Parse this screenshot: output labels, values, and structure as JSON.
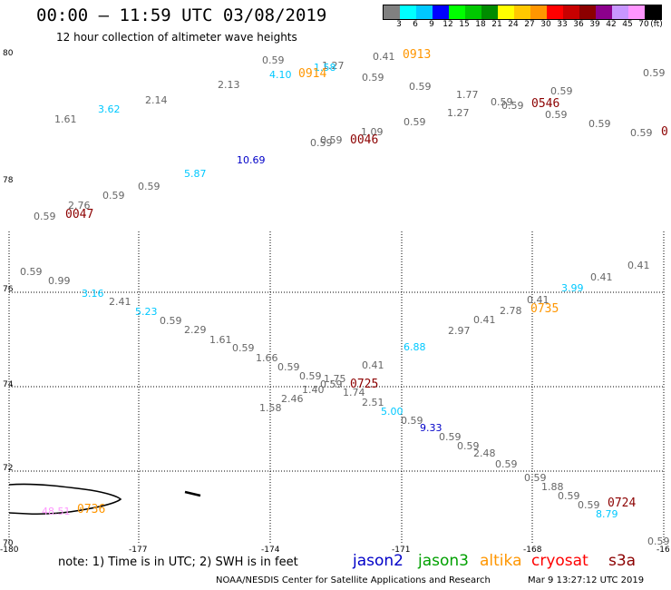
{
  "title": "00:00 – 11:59 UTC 03/08/2019",
  "subtitle": "12 hour collection of altimeter wave heights",
  "colorbar": {
    "unit": "(ft)",
    "labels": [
      "3",
      "6",
      "9",
      "12",
      "15",
      "18",
      "21",
      "24",
      "27",
      "30",
      "33",
      "36",
      "39",
      "42",
      "45",
      "70"
    ],
    "colors": [
      "#808080",
      "#00ffff",
      "#00c8ff",
      "#0000ff",
      "#00ff00",
      "#00c800",
      "#008c00",
      "#ffff00",
      "#ffc800",
      "#ff9600",
      "#ff0000",
      "#c80000",
      "#8c0000",
      "#8c008c",
      "#c896ff",
      "#ff96ff",
      "#000000"
    ]
  },
  "axes": {
    "lat_labels": [
      "80",
      "78",
      "76",
      "74",
      "72",
      "70"
    ],
    "lon_labels": [
      "-180",
      "-177",
      "-174",
      "-171",
      "-168",
      "-16"
    ]
  },
  "wave_heights": [
    {
      "v": "0.59",
      "c": "#666666"
    },
    {
      "v": "4.10",
      "c": "#00c8ff"
    },
    {
      "v": "1.27",
      "c": "#666666"
    },
    {
      "v": "1.58",
      "c": "#00c8ff"
    },
    {
      "v": "0.41",
      "c": "#666666"
    },
    {
      "v": "0.59",
      "c": "#666666"
    },
    {
      "v": "0.59",
      "c": "#666666"
    },
    {
      "v": "2.13",
      "c": "#666666"
    },
    {
      "v": "0.59",
      "c": "#666666"
    },
    {
      "v": "0.59",
      "c": "#666666"
    },
    {
      "v": "1.77",
      "c": "#666666"
    },
    {
      "v": "0.59",
      "c": "#666666"
    },
    {
      "v": "0.59",
      "c": "#666666"
    },
    {
      "v": "2.14",
      "c": "#666666"
    },
    {
      "v": "3.62",
      "c": "#00c8ff"
    },
    {
      "v": "1.27",
      "c": "#666666"
    },
    {
      "v": "0.59",
      "c": "#666666"
    },
    {
      "v": "1.61",
      "c": "#666666"
    },
    {
      "v": "0.59",
      "c": "#666666"
    },
    {
      "v": "0.59",
      "c": "#666666"
    },
    {
      "v": "0.59",
      "c": "#666666"
    },
    {
      "v": "1.09",
      "c": "#666666"
    },
    {
      "v": "0.59",
      "c": "#666666"
    },
    {
      "v": "0.59",
      "c": "#666666"
    },
    {
      "v": "10.69",
      "c": "#0000c8"
    },
    {
      "v": "5.87",
      "c": "#00c8ff"
    },
    {
      "v": "0.59",
      "c": "#666666"
    },
    {
      "v": "0.59",
      "c": "#666666"
    },
    {
      "v": "2.76",
      "c": "#666666"
    },
    {
      "v": "0.59",
      "c": "#666666"
    },
    {
      "v": "0.59",
      "c": "#666666"
    },
    {
      "v": "0.99",
      "c": "#666666"
    },
    {
      "v": "3.16",
      "c": "#00c8ff"
    },
    {
      "v": "2.41",
      "c": "#666666"
    },
    {
      "v": "5.23",
      "c": "#00c8ff"
    },
    {
      "v": "0.59",
      "c": "#666666"
    },
    {
      "v": "2.29",
      "c": "#666666"
    },
    {
      "v": "1.61",
      "c": "#666666"
    },
    {
      "v": "0.59",
      "c": "#666666"
    },
    {
      "v": "1.66",
      "c": "#666666"
    },
    {
      "v": "0.59",
      "c": "#666666"
    },
    {
      "v": "0.59",
      "c": "#666666"
    },
    {
      "v": "1.75",
      "c": "#666666"
    },
    {
      "v": "1.40",
      "c": "#666666"
    },
    {
      "v": "0.59",
      "c": "#666666"
    },
    {
      "v": "1.74",
      "c": "#666666"
    },
    {
      "v": "2.46",
      "c": "#666666"
    },
    {
      "v": "1.58",
      "c": "#666666"
    },
    {
      "v": "2.51",
      "c": "#666666"
    },
    {
      "v": "0.41",
      "c": "#666666"
    },
    {
      "v": "5.00",
      "c": "#00c8ff"
    },
    {
      "v": "0.59",
      "c": "#666666"
    },
    {
      "v": "9.33",
      "c": "#0000c8"
    },
    {
      "v": "0.59",
      "c": "#666666"
    },
    {
      "v": "0.59",
      "c": "#666666"
    },
    {
      "v": "2.48",
      "c": "#666666"
    },
    {
      "v": "0.59",
      "c": "#666666"
    },
    {
      "v": "6.88",
      "c": "#00c8ff"
    },
    {
      "v": "2.97",
      "c": "#666666"
    },
    {
      "v": "0.41",
      "c": "#666666"
    },
    {
      "v": "2.78",
      "c": "#666666"
    },
    {
      "v": "0.41",
      "c": "#666666"
    },
    {
      "v": "3.99",
      "c": "#00c8ff"
    },
    {
      "v": "0.41",
      "c": "#666666"
    },
    {
      "v": "0.41",
      "c": "#666666"
    },
    {
      "v": "0.59",
      "c": "#666666"
    },
    {
      "v": "1.88",
      "c": "#666666"
    },
    {
      "v": "0.59",
      "c": "#666666"
    },
    {
      "v": "0.59",
      "c": "#666666"
    },
    {
      "v": "8.79",
      "c": "#00c8ff"
    },
    {
      "v": "0.59",
      "c": "#666666"
    },
    {
      "v": "48.51",
      "c": "#ff96ff"
    }
  ],
  "time_labels": [
    {
      "t": "0913",
      "c": "#ff9600"
    },
    {
      "t": "0914",
      "c": "#ff9600"
    },
    {
      "t": "0546",
      "c": "#8c0000"
    },
    {
      "t": "0046",
      "c": "#8c0000"
    },
    {
      "t": "0047",
      "c": "#8c0000"
    },
    {
      "t": "0725",
      "c": "#8c0000"
    },
    {
      "t": "0735",
      "c": "#ff9600"
    },
    {
      "t": "0724",
      "c": "#8c0000"
    },
    {
      "t": "0736",
      "c": "#ff9600"
    },
    {
      "t": "0",
      "c": "#8c0000"
    }
  ],
  "note": "note: 1) Time is in UTC; 2) SWH is in feet",
  "legend": [
    {
      "name": "jason2",
      "c": "#0000c8"
    },
    {
      "name": "jason3",
      "c": "#00a000"
    },
    {
      "name": "altika",
      "c": "#ff9600"
    },
    {
      "name": "cryosat",
      "c": "#ff0000"
    },
    {
      "name": "s3a",
      "c": "#8c0000"
    }
  ],
  "credit": "NOAA/NESDIS Center for Satellite Applications and Research",
  "timestamp": "Mar 9 13:27:12 UTC 2019"
}
